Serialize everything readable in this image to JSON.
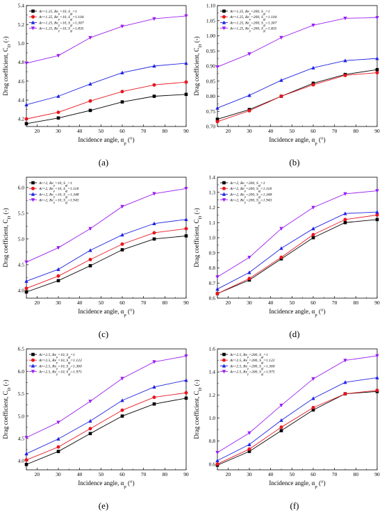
{
  "chart_data": [
    {
      "type": "line",
      "label": "(a)",
      "xlabel": "Incidence angle, α_p (°)",
      "ylabel": "Drag coefficient, C_D (-)",
      "xlim": [
        15,
        90
      ],
      "ylim": [
        4.12,
        5.4
      ],
      "xticks": [
        20,
        30,
        40,
        50,
        60,
        70,
        80,
        90
      ],
      "yticks": [
        4.2,
        4.4,
        4.6,
        4.8,
        5.0,
        5.2,
        5.4
      ],
      "ytick_decimals": 1,
      "legend_position": "top-left",
      "x": [
        15,
        30,
        45,
        60,
        75,
        90
      ],
      "series": [
        {
          "name": "Ar=1.25, Re_p=10, S_gf=1",
          "color": "#000000",
          "marker": "square",
          "values": [
            4.15,
            4.21,
            4.29,
            4.38,
            4.44,
            4.46
          ]
        },
        {
          "name": "Ar=1.25, Re_p=10, S_gf=1.104",
          "color": "#e8161f",
          "marker": "circle",
          "values": [
            4.2,
            4.27,
            4.39,
            4.49,
            4.56,
            4.59
          ]
        },
        {
          "name": "Ar=1.25, Re_p=10, S_gf=1.307",
          "color": "#1f22e0",
          "marker": "triangle-up",
          "values": [
            4.35,
            4.44,
            4.57,
            4.69,
            4.76,
            4.79
          ]
        },
        {
          "name": "Ar=1.25, Re_p=10, S_gf=1.835",
          "color": "#9a1ff0",
          "marker": "triangle-down",
          "values": [
            4.79,
            4.87,
            5.06,
            5.18,
            5.26,
            5.29
          ]
        }
      ]
    },
    {
      "type": "line",
      "label": "(b)",
      "xlabel": "Incidence angle, α_p (°)",
      "ylabel": "Drag coefficient, C_D (-)",
      "xlim": [
        15,
        90
      ],
      "ylim": [
        0.7,
        1.1
      ],
      "xticks": [
        20,
        30,
        40,
        50,
        60,
        70,
        80,
        90
      ],
      "yticks": [
        0.7,
        0.75,
        0.8,
        0.85,
        0.9,
        0.95,
        1.0,
        1.05,
        1.1
      ],
      "ytick_decimals": 2,
      "legend_position": "top-left",
      "x": [
        15,
        30,
        45,
        60,
        75,
        90
      ],
      "series": [
        {
          "name": "Ar=1.25, Re_p=200, S_gf=1",
          "color": "#000000",
          "marker": "square",
          "values": [
            0.724,
            0.756,
            0.8,
            0.843,
            0.872,
            0.888
          ]
        },
        {
          "name": "Ar=1.25, Re_p=200, S_gf=1.104",
          "color": "#e8161f",
          "marker": "circle",
          "values": [
            0.716,
            0.752,
            0.8,
            0.838,
            0.869,
            0.878
          ]
        },
        {
          "name": "Ar=1.25, Re_p=200, S_gf=1.307",
          "color": "#1f22e0",
          "marker": "triangle-up",
          "values": [
            0.761,
            0.803,
            0.853,
            0.894,
            0.918,
            0.925
          ]
        },
        {
          "name": "Ar=1.25, Re_p=200, S_gf=1.835",
          "color": "#9a1ff0",
          "marker": "triangle-down",
          "values": [
            0.897,
            0.94,
            0.994,
            1.035,
            1.058,
            1.06
          ]
        }
      ]
    },
    {
      "type": "line",
      "label": "(c)",
      "xlabel": "Incidence angle, α_p (°)",
      "ylabel": "Drag coefficient, C_D (-)",
      "xlim": [
        15,
        90
      ],
      "ylim": [
        3.85,
        6.2
      ],
      "xticks": [
        20,
        30,
        40,
        50,
        60,
        70,
        80,
        90
      ],
      "yticks": [
        4.0,
        4.5,
        5.0,
        5.5,
        6.0
      ],
      "ytick_decimals": 1,
      "legend_position": "top-left",
      "x": [
        15,
        30,
        45,
        60,
        75,
        90
      ],
      "series": [
        {
          "name": "Ar=2, Re_p=10, S_gf=1",
          "color": "#000000",
          "marker": "square",
          "values": [
            3.97,
            4.19,
            4.48,
            4.79,
            5.0,
            5.06
          ]
        },
        {
          "name": "Ar=2, Re_p=10, S_gf=1.118",
          "color": "#e8161f",
          "marker": "circle",
          "values": [
            4.04,
            4.28,
            4.6,
            4.9,
            5.12,
            5.2
          ]
        },
        {
          "name": "Ar=2, Re_p=10, S_gf=1.348",
          "color": "#1f22e0",
          "marker": "triangle-up",
          "values": [
            4.18,
            4.41,
            4.78,
            5.08,
            5.3,
            5.38
          ]
        },
        {
          "name": "Ar=2, Re_p=10, S_gf=1.943",
          "color": "#9a1ff0",
          "marker": "triangle-down",
          "values": [
            4.55,
            4.83,
            5.2,
            5.63,
            5.88,
            5.98
          ]
        }
      ]
    },
    {
      "type": "line",
      "label": "(d)",
      "xlabel": "Incidence angle, α_p (°)",
      "ylabel": "Drag coefficient, C_D (-)",
      "xlim": [
        15,
        90
      ],
      "ylim": [
        0.6,
        1.4
      ],
      "xticks": [
        20,
        30,
        40,
        50,
        60,
        70,
        80,
        90
      ],
      "yticks": [
        0.6,
        0.7,
        0.8,
        0.9,
        1.0,
        1.1,
        1.2,
        1.3,
        1.4
      ],
      "ytick_decimals": 1,
      "legend_position": "top-left",
      "x": [
        15,
        30,
        45,
        60,
        75,
        90
      ],
      "series": [
        {
          "name": "Ar=2, Re_p=200, S_gf=1",
          "color": "#000000",
          "marker": "square",
          "values": [
            0.63,
            0.72,
            0.86,
            1.0,
            1.1,
            1.12
          ]
        },
        {
          "name": "Ar=2, Re_p=200, S_gf=1.118",
          "color": "#e8161f",
          "marker": "circle",
          "values": [
            0.63,
            0.73,
            0.87,
            1.02,
            1.12,
            1.15
          ]
        },
        {
          "name": "Ar=2, Re_p=200, S_gf=1.348",
          "color": "#1f22e0",
          "marker": "triangle-up",
          "values": [
            0.66,
            0.77,
            0.93,
            1.06,
            1.16,
            1.17
          ]
        },
        {
          "name": "Ar=2, Re_p=200, S_gf=1.943",
          "color": "#9a1ff0",
          "marker": "triangle-down",
          "values": [
            0.74,
            0.87,
            1.06,
            1.2,
            1.29,
            1.31
          ]
        }
      ]
    },
    {
      "type": "line",
      "label": "(e)",
      "xlabel": "Incidence angle, α_p (°)",
      "ylabel": "Drag coefficient, C_D (-)",
      "xlim": [
        15,
        90
      ],
      "ylim": [
        3.8,
        6.5
      ],
      "xticks": [
        20,
        30,
        40,
        50,
        60,
        70,
        80,
        90
      ],
      "yticks": [
        4.0,
        4.5,
        5.0,
        5.5,
        6.0,
        6.5
      ],
      "ytick_decimals": 1,
      "legend_position": "top-left",
      "x": [
        15,
        30,
        45,
        60,
        75,
        90
      ],
      "series": [
        {
          "name": "Ar=2.5, Re_p=10, S_gf=1",
          "color": "#000000",
          "marker": "square",
          "values": [
            3.92,
            4.21,
            4.61,
            5.0,
            5.27,
            5.4
          ]
        },
        {
          "name": "Ar=2.5, Re_p=10, S_gf=1.122",
          "color": "#e8161f",
          "marker": "circle",
          "values": [
            4.02,
            4.31,
            4.72,
            5.13,
            5.42,
            5.52
          ]
        },
        {
          "name": "Ar=2.5, Re_p=10, S_gf=1.360",
          "color": "#1f22e0",
          "marker": "triangle-up",
          "values": [
            4.16,
            4.49,
            4.89,
            5.35,
            5.65,
            5.8
          ]
        },
        {
          "name": "Ar=2.5, Re_p=10, S_gf=1.975",
          "color": "#9a1ff0",
          "marker": "triangle-down",
          "values": [
            4.52,
            4.86,
            5.33,
            5.84,
            6.21,
            6.34
          ]
        }
      ]
    },
    {
      "type": "line",
      "label": "(f)",
      "xlabel": "Incidence angle, α_p (°)",
      "ylabel": "Drag coefficient, C_D (-)",
      "xlim": [
        15,
        90
      ],
      "ylim": [
        0.55,
        1.6
      ],
      "xticks": [
        20,
        30,
        40,
        50,
        60,
        70,
        80,
        90
      ],
      "yticks": [
        0.6,
        0.8,
        1.0,
        1.2,
        1.4,
        1.6
      ],
      "ytick_decimals": 1,
      "legend_position": "top-left",
      "x": [
        15,
        30,
        45,
        60,
        75,
        90
      ],
      "series": [
        {
          "name": "Ar=2.5, Re_p=200, S_gf=1",
          "color": "#000000",
          "marker": "square",
          "values": [
            0.59,
            0.71,
            0.89,
            1.07,
            1.21,
            1.23
          ]
        },
        {
          "name": "Ar=2.5, Re_p=200, S_gf=1.122",
          "color": "#e8161f",
          "marker": "circle",
          "values": [
            0.6,
            0.73,
            0.92,
            1.09,
            1.21,
            1.24
          ]
        },
        {
          "name": "Ar=2.5, Re_p=200, S_gf=1.360",
          "color": "#1f22e0",
          "marker": "triangle-up",
          "values": [
            0.63,
            0.77,
            0.98,
            1.17,
            1.31,
            1.35
          ]
        },
        {
          "name": "Ar=2.5, Re_p=200, S_gf=1.975",
          "color": "#9a1ff0",
          "marker": "triangle-down",
          "values": [
            0.7,
            0.87,
            1.11,
            1.34,
            1.5,
            1.54
          ]
        }
      ]
    }
  ]
}
